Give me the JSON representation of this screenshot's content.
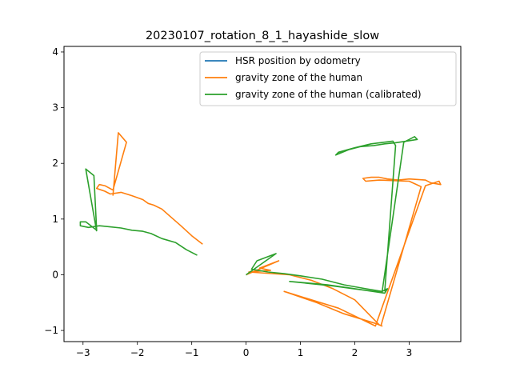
{
  "chart_data": {
    "type": "line",
    "title": "20230107_rotation_8_1_hayashide_slow",
    "xlabel": "",
    "ylabel": "",
    "xlim": [
      -3.35,
      3.95
    ],
    "ylim": [
      -1.2,
      4.1
    ],
    "xticks": [
      -3,
      -2,
      -1,
      0,
      1,
      2,
      3
    ],
    "yticks": [
      -1,
      0,
      1,
      2,
      3,
      4
    ],
    "grid": false,
    "legend_position": "upper-right",
    "series": [
      {
        "name": "HSR position by odometry",
        "color": "#1f77b4",
        "segments": [
          [
            [
              0,
              0
            ],
            [
              0.01,
              0
            ]
          ]
        ]
      },
      {
        "name": "gravity zone of the human",
        "color": "#ff7f0e",
        "segments": [
          [
            [
              -2.45,
              1.42
            ],
            [
              -2.35,
              2.55
            ],
            [
              -2.2,
              2.38
            ],
            [
              -2.45,
              1.52
            ],
            [
              -2.6,
              1.6
            ],
            [
              -2.7,
              1.62
            ],
            [
              -2.75,
              1.55
            ],
            [
              -2.6,
              1.5
            ],
            [
              -2.5,
              1.45
            ],
            [
              -2.3,
              1.48
            ],
            [
              -2.1,
              1.42
            ],
            [
              -1.9,
              1.35
            ],
            [
              -1.8,
              1.28
            ],
            [
              -1.7,
              1.25
            ],
            [
              -1.55,
              1.18
            ],
            [
              -1.4,
              1.05
            ],
            [
              -1.2,
              0.88
            ],
            [
              -1.0,
              0.7
            ],
            [
              -0.8,
              0.55
            ]
          ],
          [
            [
              0,
              0
            ],
            [
              0.6,
              0.25
            ],
            [
              0.25,
              0.12
            ],
            [
              0.45,
              0.08
            ],
            [
              0.05,
              0.05
            ],
            [
              0.8,
              0.0
            ],
            [
              1.2,
              -0.1
            ],
            [
              1.6,
              -0.25
            ],
            [
              2.0,
              -0.45
            ],
            [
              2.3,
              -0.75
            ],
            [
              2.45,
              -0.9
            ],
            [
              2.5,
              -0.92
            ],
            [
              2.4,
              -0.88
            ],
            [
              1.8,
              -0.7
            ],
            [
              1.3,
              -0.5
            ],
            [
              0.7,
              -0.3
            ],
            [
              1.7,
              -0.6
            ],
            [
              2.38,
              -0.92
            ],
            [
              3.3,
              1.6
            ],
            [
              3.55,
              1.68
            ],
            [
              3.58,
              1.62
            ],
            [
              3.4,
              1.65
            ],
            [
              3.3,
              1.7
            ],
            [
              3.0,
              1.72
            ],
            [
              2.8,
              1.7
            ],
            [
              2.6,
              1.72
            ],
            [
              2.45,
              1.75
            ],
            [
              2.3,
              1.75
            ],
            [
              2.15,
              1.73
            ],
            [
              2.2,
              1.68
            ],
            [
              2.45,
              1.7
            ],
            [
              3.0,
              1.68
            ],
            [
              3.22,
              1.58
            ],
            [
              2.5,
              -0.85
            ],
            [
              2.48,
              -0.92
            ]
          ]
        ]
      },
      {
        "name": "gravity zone of the human (calibrated)",
        "color": "#2ca02c",
        "segments": [
          [
            [
              -2.75,
              0.78
            ],
            [
              -2.95,
              1.9
            ],
            [
              -2.8,
              1.78
            ],
            [
              -2.75,
              0.8
            ],
            [
              -2.95,
              0.95
            ],
            [
              -3.05,
              0.95
            ],
            [
              -3.05,
              0.88
            ],
            [
              -2.9,
              0.85
            ],
            [
              -2.7,
              0.88
            ],
            [
              -2.5,
              0.86
            ],
            [
              -2.3,
              0.84
            ],
            [
              -2.1,
              0.8
            ],
            [
              -1.9,
              0.78
            ],
            [
              -1.75,
              0.74
            ],
            [
              -1.55,
              0.65
            ],
            [
              -1.3,
              0.58
            ],
            [
              -1.1,
              0.45
            ],
            [
              -0.9,
              0.35
            ]
          ],
          [
            [
              0,
              0
            ],
            [
              0.55,
              0.38
            ],
            [
              0.2,
              0.25
            ],
            [
              0.1,
              0.1
            ],
            [
              0.4,
              0.05
            ],
            [
              0.7,
              0.02
            ],
            [
              1.0,
              -0.02
            ],
            [
              1.4,
              -0.08
            ],
            [
              1.8,
              -0.18
            ],
            [
              2.2,
              -0.25
            ],
            [
              2.5,
              -0.3
            ],
            [
              2.6,
              -0.25
            ],
            [
              2.55,
              -0.33
            ],
            [
              2.0,
              -0.25
            ],
            [
              1.5,
              -0.18
            ],
            [
              0.8,
              -0.12
            ],
            [
              1.6,
              -0.2
            ],
            [
              2.5,
              -0.32
            ],
            [
              2.9,
              2.38
            ],
            [
              3.1,
              2.48
            ],
            [
              3.15,
              2.43
            ],
            [
              2.95,
              2.4
            ],
            [
              2.75,
              2.37
            ],
            [
              2.55,
              2.35
            ],
            [
              2.35,
              2.32
            ],
            [
              2.1,
              2.3
            ],
            [
              1.9,
              2.25
            ],
            [
              1.65,
              2.15
            ],
            [
              1.7,
              2.2
            ],
            [
              2.0,
              2.28
            ],
            [
              2.3,
              2.35
            ],
            [
              2.7,
              2.4
            ],
            [
              2.75,
              2.32
            ],
            [
              2.55,
              -0.3
            ]
          ]
        ]
      }
    ]
  }
}
